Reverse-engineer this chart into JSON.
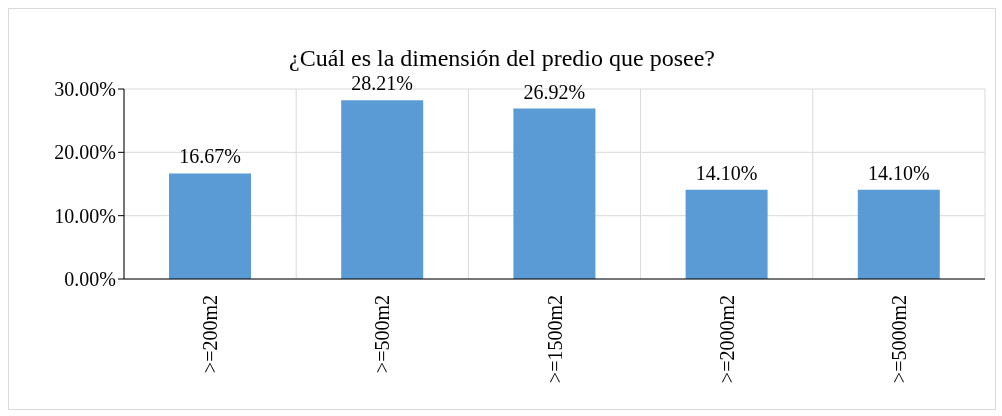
{
  "chart_data": {
    "type": "bar",
    "title": "¿Cuál es la dimensión del predio que posee?",
    "categories": [
      ">=200m2",
      ">=500m2",
      ">=1500m2",
      ">=2000m2",
      ">=5000m2"
    ],
    "values": [
      16.67,
      28.21,
      26.92,
      14.1,
      14.1
    ],
    "value_labels": [
      "16.67%",
      "28.21%",
      "26.92%",
      "14.10%",
      "14.10%"
    ],
    "color": "#5b9bd5",
    "ylim": [
      0,
      30
    ],
    "yticks": [
      {
        "value": 0,
        "label": "0.00%"
      },
      {
        "value": 10,
        "label": "10.00%"
      },
      {
        "value": 20,
        "label": "20.00%"
      },
      {
        "value": 30,
        "label": "30.00%"
      }
    ],
    "grid": true
  }
}
